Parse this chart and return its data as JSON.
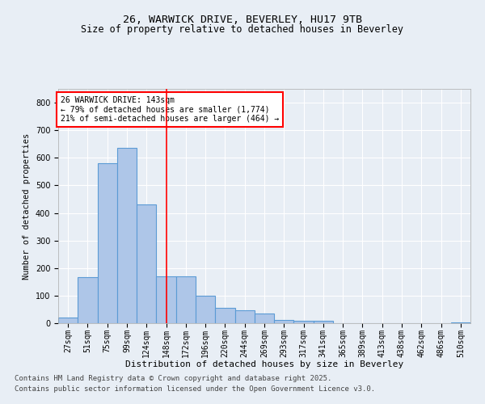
{
  "title_line1": "26, WARWICK DRIVE, BEVERLEY, HU17 9TB",
  "title_line2": "Size of property relative to detached houses in Beverley",
  "xlabel": "Distribution of detached houses by size in Beverley",
  "ylabel": "Number of detached properties",
  "categories": [
    "27sqm",
    "51sqm",
    "75sqm",
    "99sqm",
    "124sqm",
    "148sqm",
    "172sqm",
    "196sqm",
    "220sqm",
    "244sqm",
    "269sqm",
    "293sqm",
    "317sqm",
    "341sqm",
    "365sqm",
    "389sqm",
    "413sqm",
    "438sqm",
    "462sqm",
    "486sqm",
    "510sqm"
  ],
  "values": [
    20,
    168,
    580,
    635,
    430,
    170,
    170,
    100,
    55,
    48,
    35,
    12,
    10,
    8,
    1,
    0,
    0,
    0,
    0,
    0,
    2
  ],
  "bar_color": "#aec6e8",
  "bar_edge_color": "#5b9bd5",
  "bar_linewidth": 0.8,
  "marker_label_line1": "26 WARWICK DRIVE: 143sqm",
  "marker_label_line2": "← 79% of detached houses are smaller (1,774)",
  "marker_label_line3": "21% of semi-detached houses are larger (464) →",
  "marker_color": "red",
  "annotation_box_edgecolor": "red",
  "ylim": [
    0,
    850
  ],
  "yticks": [
    0,
    100,
    200,
    300,
    400,
    500,
    600,
    700,
    800
  ],
  "bg_color": "#e8eef5",
  "plot_bg_color": "#e8eef5",
  "footer_line1": "Contains HM Land Registry data © Crown copyright and database right 2025.",
  "footer_line2": "Contains public sector information licensed under the Open Government Licence v3.0.",
  "title_fontsize": 9.5,
  "subtitle_fontsize": 8.5,
  "footer_fontsize": 6.5,
  "grid_color": "#ffffff",
  "tick_fontsize": 7,
  "ylabel_fontsize": 7.5,
  "xlabel_fontsize": 8
}
